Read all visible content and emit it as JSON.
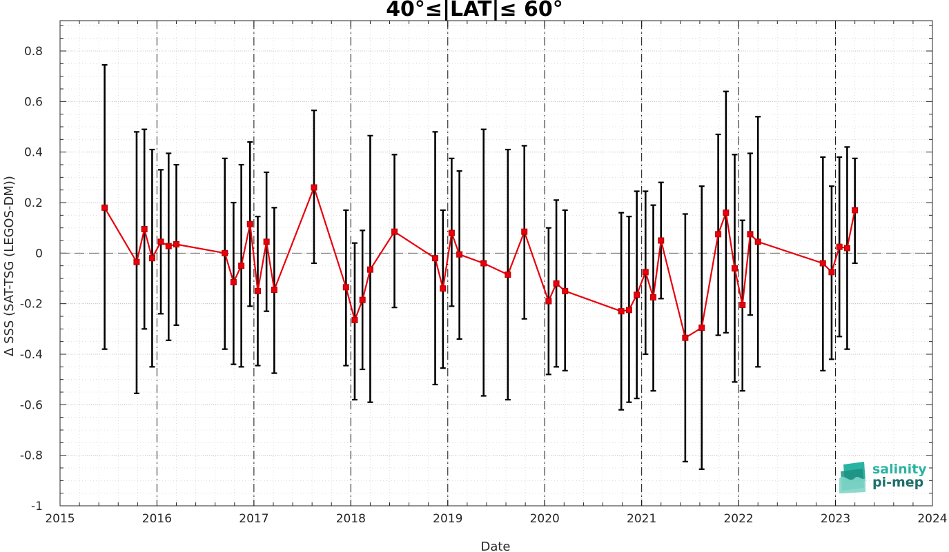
{
  "chart_data": {
    "type": "errorbar-line",
    "title": "40°≤|LAT|≤ 60°",
    "xlabel": "Date",
    "ylabel": "Δ SSS (SAT-TSG (LEGOS-DM))",
    "xlim": [
      2015,
      2024
    ],
    "ylim": [
      -1,
      0.92
    ],
    "xticks": [
      "2015",
      "2016",
      "2017",
      "2018",
      "2019",
      "2020",
      "2021",
      "2022",
      "2023",
      "2024"
    ],
    "yticks": [
      "0.8",
      "0.6",
      "0.4",
      "0.2",
      "0",
      "-0.2",
      "-0.4",
      "-0.6",
      "-0.8",
      "-1"
    ],
    "grid": true,
    "reference_line_y": 0,
    "year_divider_lines": [
      2016,
      2017,
      2018,
      2019,
      2020,
      2021,
      2022,
      2023
    ],
    "colors": {
      "series": "#e8000b",
      "errorbars": "#000000"
    },
    "points": [
      {
        "x": 2015.46,
        "y": 0.18,
        "lo": -0.38,
        "hi": 0.745
      },
      {
        "x": 2015.79,
        "y": -0.035,
        "lo": -0.555,
        "hi": 0.48
      },
      {
        "x": 2015.87,
        "y": 0.095,
        "lo": -0.3,
        "hi": 0.49
      },
      {
        "x": 2015.95,
        "y": -0.02,
        "lo": -0.45,
        "hi": 0.41
      },
      {
        "x": 2016.04,
        "y": 0.045,
        "lo": -0.24,
        "hi": 0.33
      },
      {
        "x": 2016.12,
        "y": 0.028,
        "lo": -0.345,
        "hi": 0.395
      },
      {
        "x": 2016.2,
        "y": 0.035,
        "lo": -0.285,
        "hi": 0.35
      },
      {
        "x": 2016.7,
        "y": 0.0,
        "lo": -0.38,
        "hi": 0.375
      },
      {
        "x": 2016.79,
        "y": -0.115,
        "lo": -0.44,
        "hi": 0.2
      },
      {
        "x": 2016.87,
        "y": -0.05,
        "lo": -0.45,
        "hi": 0.35
      },
      {
        "x": 2016.96,
        "y": 0.115,
        "lo": -0.21,
        "hi": 0.44
      },
      {
        "x": 2017.04,
        "y": -0.15,
        "lo": -0.445,
        "hi": 0.145
      },
      {
        "x": 2017.13,
        "y": 0.045,
        "lo": -0.23,
        "hi": 0.32
      },
      {
        "x": 2017.21,
        "y": -0.145,
        "lo": -0.475,
        "hi": 0.18
      },
      {
        "x": 2017.62,
        "y": 0.26,
        "lo": -0.04,
        "hi": 0.565
      },
      {
        "x": 2017.95,
        "y": -0.135,
        "lo": -0.445,
        "hi": 0.17
      },
      {
        "x": 2018.04,
        "y": -0.265,
        "lo": -0.58,
        "hi": 0.04
      },
      {
        "x": 2018.12,
        "y": -0.185,
        "lo": -0.46,
        "hi": 0.09
      },
      {
        "x": 2018.2,
        "y": -0.065,
        "lo": -0.59,
        "hi": 0.465
      },
      {
        "x": 2018.45,
        "y": 0.085,
        "lo": -0.215,
        "hi": 0.39
      },
      {
        "x": 2018.87,
        "y": -0.02,
        "lo": -0.52,
        "hi": 0.48
      },
      {
        "x": 2018.95,
        "y": -0.14,
        "lo": -0.455,
        "hi": 0.17
      },
      {
        "x": 2019.04,
        "y": 0.08,
        "lo": -0.21,
        "hi": 0.375
      },
      {
        "x": 2019.12,
        "y": -0.005,
        "lo": -0.34,
        "hi": 0.325
      },
      {
        "x": 2019.37,
        "y": -0.04,
        "lo": -0.565,
        "hi": 0.49
      },
      {
        "x": 2019.62,
        "y": -0.085,
        "lo": -0.58,
        "hi": 0.41
      },
      {
        "x": 2019.79,
        "y": 0.085,
        "lo": -0.26,
        "hi": 0.425
      },
      {
        "x": 2020.04,
        "y": -0.19,
        "lo": -0.48,
        "hi": 0.1
      },
      {
        "x": 2020.12,
        "y": -0.12,
        "lo": -0.45,
        "hi": 0.21
      },
      {
        "x": 2020.21,
        "y": -0.15,
        "lo": -0.465,
        "hi": 0.17
      },
      {
        "x": 2020.79,
        "y": -0.23,
        "lo": -0.62,
        "hi": 0.16
      },
      {
        "x": 2020.87,
        "y": -0.225,
        "lo": -0.59,
        "hi": 0.145
      },
      {
        "x": 2020.95,
        "y": -0.165,
        "lo": -0.575,
        "hi": 0.245
      },
      {
        "x": 2021.04,
        "y": -0.075,
        "lo": -0.4,
        "hi": 0.245
      },
      {
        "x": 2021.12,
        "y": -0.175,
        "lo": -0.545,
        "hi": 0.19
      },
      {
        "x": 2021.2,
        "y": 0.05,
        "lo": -0.18,
        "hi": 0.28
      },
      {
        "x": 2021.45,
        "y": -0.335,
        "lo": -0.825,
        "hi": 0.155
      },
      {
        "x": 2021.62,
        "y": -0.295,
        "lo": -0.855,
        "hi": 0.265
      },
      {
        "x": 2021.79,
        "y": 0.075,
        "lo": -0.325,
        "hi": 0.47
      },
      {
        "x": 2021.87,
        "y": 0.16,
        "lo": -0.315,
        "hi": 0.64
      },
      {
        "x": 2021.96,
        "y": -0.06,
        "lo": -0.51,
        "hi": 0.39
      },
      {
        "x": 2022.04,
        "y": -0.205,
        "lo": -0.545,
        "hi": 0.13
      },
      {
        "x": 2022.12,
        "y": 0.075,
        "lo": -0.245,
        "hi": 0.395
      },
      {
        "x": 2022.2,
        "y": 0.045,
        "lo": -0.45,
        "hi": 0.54
      },
      {
        "x": 2022.87,
        "y": -0.04,
        "lo": -0.465,
        "hi": 0.38
      },
      {
        "x": 2022.96,
        "y": -0.075,
        "lo": -0.42,
        "hi": 0.265
      },
      {
        "x": 2023.04,
        "y": 0.025,
        "lo": -0.33,
        "hi": 0.38
      },
      {
        "x": 2023.12,
        "y": 0.02,
        "lo": -0.38,
        "hi": 0.42
      },
      {
        "x": 2023.2,
        "y": 0.17,
        "lo": -0.04,
        "hi": 0.375
      }
    ]
  },
  "logo": {
    "line1": "salinity",
    "line2": "pi-mep",
    "colors": [
      "#2ab3a2",
      "#1f6f6a",
      "#7fd6c8"
    ]
  }
}
